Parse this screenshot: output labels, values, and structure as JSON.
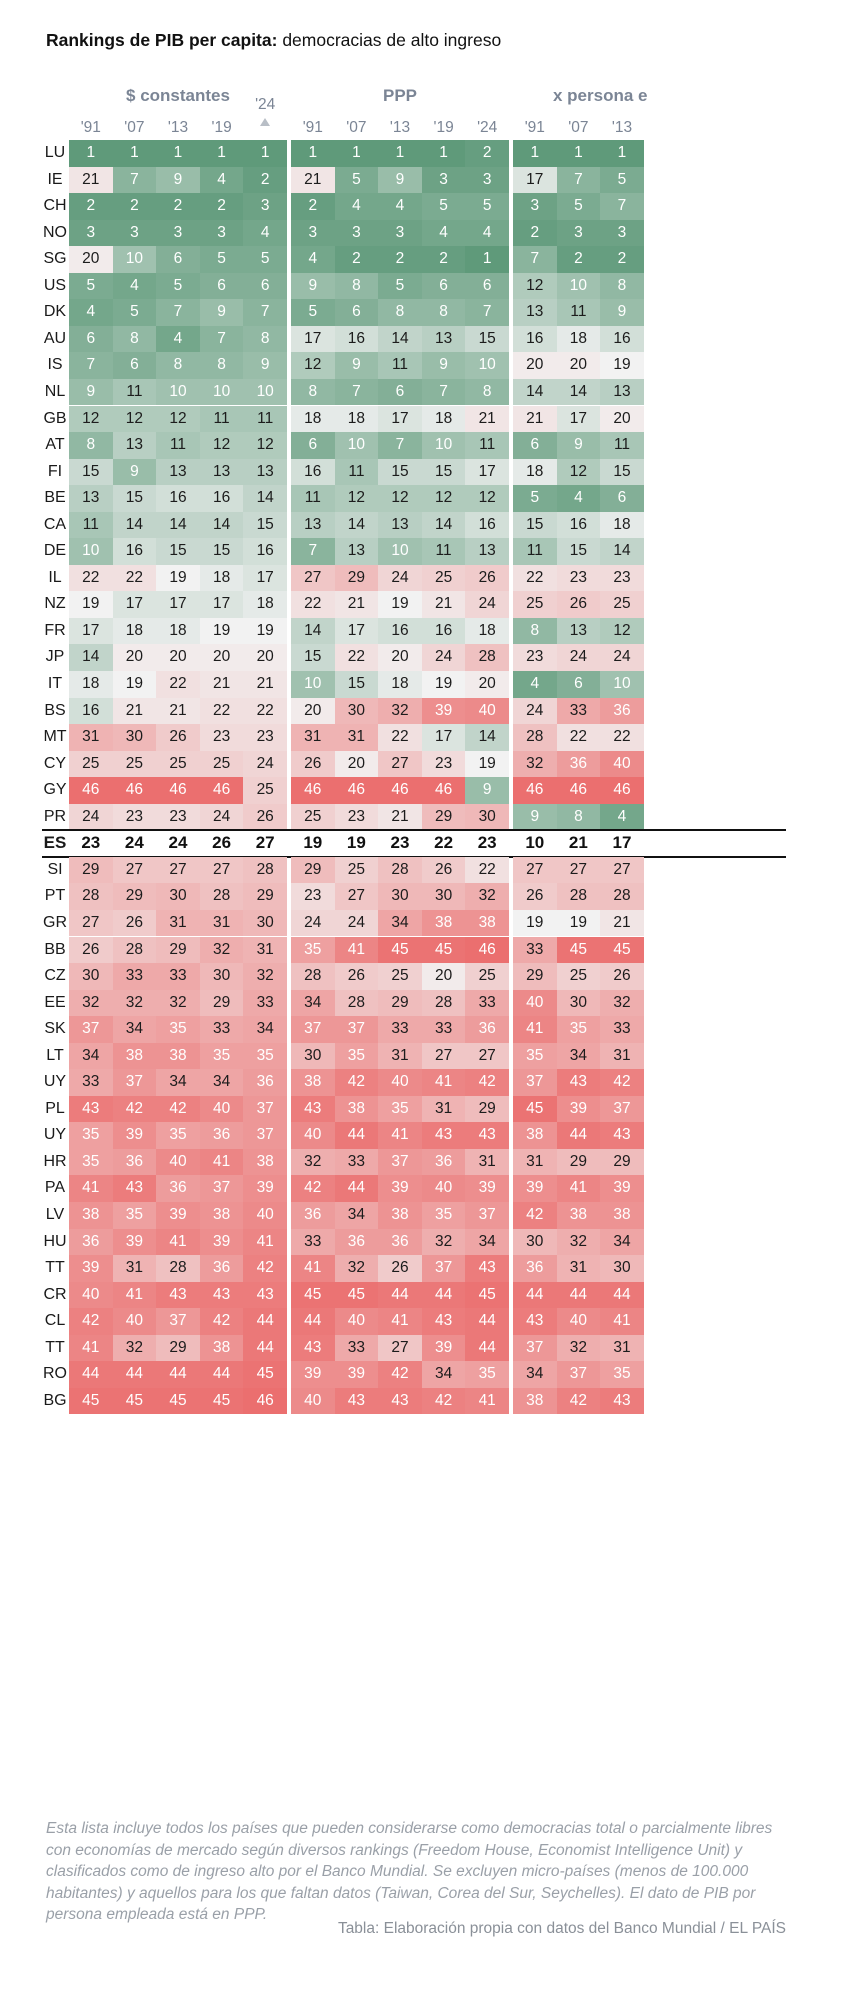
{
  "title": {
    "bold": "Rankings de PIB per capita:",
    "rest": " democracias de alto ingreso"
  },
  "groups": [
    "$ constantes",
    "PPP",
    "x persona e"
  ],
  "years": [
    "'91",
    "'07",
    "'13",
    "'19",
    "'24"
  ],
  "sorted_year_label": "'24",
  "note": "Esta lista incluye todos los países que pueden considerarse como democracias total o parcialmente libres con economías de mercado según diversos rankings (Freedom House, Economist Intelligence Unit) y clasificados como de ingreso alto por el Banco Mundial. Se excluyen micro-países (menos de 100.000 habitantes) y aquellos para los que faltan datos (Taiwan, Corea del Sur, Seychelles). El dato de PIB por persona empleada está en PPP.",
  "source": "Tabla: Elaboración propia con datos del Banco Mundial / EL PAÍS",
  "colors": {
    "good": "#5f9a7a",
    "bad": "#eb6f6f",
    "neutral": "#f2f2f2",
    "group_header": "#7b8595"
  },
  "chart_data": {
    "type": "table",
    "highlight_row": "ES",
    "columns": [
      "$ constantes '91",
      "$ constantes '07",
      "$ constantes '13",
      "$ constantes '19",
      "$ constantes '24",
      "PPP '91",
      "PPP '07",
      "PPP '13",
      "PPP '19",
      "PPP '24",
      "x persona e '91",
      "x persona e '07",
      "x persona e '13"
    ],
    "rows": [
      {
        "country": "LU",
        "values": [
          1,
          1,
          1,
          1,
          1,
          1,
          1,
          1,
          1,
          2,
          1,
          1,
          1
        ]
      },
      {
        "country": "IE",
        "values": [
          21,
          7,
          9,
          4,
          2,
          21,
          5,
          9,
          3,
          3,
          17,
          7,
          5
        ]
      },
      {
        "country": "CH",
        "values": [
          2,
          2,
          2,
          2,
          3,
          2,
          4,
          4,
          5,
          5,
          3,
          5,
          7
        ]
      },
      {
        "country": "NO",
        "values": [
          3,
          3,
          3,
          3,
          4,
          3,
          3,
          3,
          4,
          4,
          2,
          3,
          3
        ]
      },
      {
        "country": "SG",
        "values": [
          20,
          10,
          6,
          5,
          5,
          4,
          2,
          2,
          2,
          1,
          7,
          2,
          2
        ]
      },
      {
        "country": "US",
        "values": [
          5,
          4,
          5,
          6,
          6,
          9,
          8,
          5,
          6,
          6,
          12,
          10,
          8
        ]
      },
      {
        "country": "DK",
        "values": [
          4,
          5,
          7,
          9,
          7,
          5,
          6,
          8,
          8,
          7,
          13,
          11,
          9
        ]
      },
      {
        "country": "AU",
        "values": [
          6,
          8,
          4,
          7,
          8,
          17,
          16,
          14,
          13,
          15,
          16,
          18,
          16
        ]
      },
      {
        "country": "IS",
        "values": [
          7,
          6,
          8,
          8,
          9,
          12,
          9,
          11,
          9,
          10,
          20,
          20,
          19
        ]
      },
      {
        "country": "NL",
        "values": [
          9,
          11,
          10,
          10,
          10,
          8,
          7,
          6,
          7,
          8,
          14,
          14,
          13
        ]
      },
      {
        "country": "GB",
        "values": [
          12,
          12,
          12,
          11,
          11,
          18,
          18,
          17,
          18,
          21,
          21,
          17,
          20
        ]
      },
      {
        "country": "AT",
        "values": [
          8,
          13,
          11,
          12,
          12,
          6,
          10,
          7,
          10,
          11,
          6,
          9,
          11
        ]
      },
      {
        "country": "FI",
        "values": [
          15,
          9,
          13,
          13,
          13,
          16,
          11,
          15,
          15,
          17,
          18,
          12,
          15
        ]
      },
      {
        "country": "BE",
        "values": [
          13,
          15,
          16,
          16,
          14,
          11,
          12,
          12,
          12,
          12,
          5,
          4,
          6
        ]
      },
      {
        "country": "CA",
        "values": [
          11,
          14,
          14,
          14,
          15,
          13,
          14,
          13,
          14,
          16,
          15,
          16,
          18
        ]
      },
      {
        "country": "DE",
        "values": [
          10,
          16,
          15,
          15,
          16,
          7,
          13,
          10,
          11,
          13,
          11,
          15,
          14
        ]
      },
      {
        "country": "IL",
        "values": [
          22,
          22,
          19,
          18,
          17,
          27,
          29,
          24,
          25,
          26,
          22,
          23,
          23
        ]
      },
      {
        "country": "NZ",
        "values": [
          19,
          17,
          17,
          17,
          18,
          22,
          21,
          19,
          21,
          24,
          25,
          26,
          25
        ]
      },
      {
        "country": "FR",
        "values": [
          17,
          18,
          18,
          19,
          19,
          14,
          17,
          16,
          16,
          18,
          8,
          13,
          12
        ]
      },
      {
        "country": "JP",
        "values": [
          14,
          20,
          20,
          20,
          20,
          15,
          22,
          20,
          24,
          28,
          23,
          24,
          24
        ]
      },
      {
        "country": "IT",
        "values": [
          18,
          19,
          22,
          21,
          21,
          10,
          15,
          18,
          19,
          20,
          4,
          6,
          10
        ]
      },
      {
        "country": "BS",
        "values": [
          16,
          21,
          21,
          22,
          22,
          20,
          30,
          32,
          39,
          40,
          24,
          33,
          36
        ]
      },
      {
        "country": "MT",
        "values": [
          31,
          30,
          26,
          23,
          23,
          31,
          31,
          22,
          17,
          14,
          28,
          22,
          22
        ]
      },
      {
        "country": "CY",
        "values": [
          25,
          25,
          25,
          25,
          24,
          26,
          20,
          27,
          23,
          19,
          32,
          36,
          40
        ]
      },
      {
        "country": "GY",
        "values": [
          46,
          46,
          46,
          46,
          25,
          46,
          46,
          46,
          46,
          9,
          46,
          46,
          46
        ]
      },
      {
        "country": "PR",
        "values": [
          24,
          23,
          23,
          24,
          26,
          25,
          23,
          21,
          29,
          30,
          9,
          8,
          4
        ]
      },
      {
        "country": "ES",
        "values": [
          23,
          24,
          24,
          26,
          27,
          19,
          19,
          23,
          22,
          23,
          10,
          21,
          17
        ]
      },
      {
        "country": "SI",
        "values": [
          29,
          27,
          27,
          27,
          28,
          29,
          25,
          28,
          26,
          22,
          27,
          27,
          27
        ]
      },
      {
        "country": "PT",
        "values": [
          28,
          29,
          30,
          28,
          29,
          23,
          27,
          30,
          30,
          32,
          26,
          28,
          28
        ]
      },
      {
        "country": "GR",
        "values": [
          27,
          26,
          31,
          31,
          30,
          24,
          24,
          34,
          38,
          38,
          19,
          19,
          21
        ]
      },
      {
        "country": "BB",
        "values": [
          26,
          28,
          29,
          32,
          31,
          35,
          41,
          45,
          45,
          46,
          33,
          45,
          45
        ]
      },
      {
        "country": "CZ",
        "values": [
          30,
          33,
          33,
          30,
          32,
          28,
          26,
          25,
          20,
          25,
          29,
          25,
          26
        ]
      },
      {
        "country": "EE",
        "values": [
          32,
          32,
          32,
          29,
          33,
          34,
          28,
          29,
          28,
          33,
          40,
          30,
          32
        ]
      },
      {
        "country": "SK",
        "values": [
          37,
          34,
          35,
          33,
          34,
          37,
          37,
          33,
          33,
          36,
          41,
          35,
          33
        ]
      },
      {
        "country": "LT",
        "values": [
          34,
          38,
          38,
          35,
          35,
          30,
          35,
          31,
          27,
          27,
          35,
          34,
          31
        ]
      },
      {
        "country": "UY",
        "values": [
          33,
          37,
          34,
          34,
          36,
          38,
          42,
          40,
          41,
          42,
          37,
          43,
          42
        ]
      },
      {
        "country": "PL",
        "values": [
          43,
          42,
          42,
          40,
          37,
          43,
          38,
          35,
          31,
          29,
          45,
          39,
          37
        ]
      },
      {
        "country": "UY",
        "values": [
          35,
          39,
          35,
          36,
          37,
          40,
          44,
          41,
          43,
          43,
          38,
          44,
          43
        ]
      },
      {
        "country": "HR",
        "values": [
          35,
          36,
          40,
          41,
          38,
          32,
          33,
          37,
          36,
          31,
          31,
          29,
          29
        ]
      },
      {
        "country": "PA",
        "values": [
          41,
          43,
          36,
          37,
          39,
          42,
          44,
          39,
          40,
          39,
          39,
          41,
          39
        ]
      },
      {
        "country": "LV",
        "values": [
          38,
          35,
          39,
          38,
          40,
          36,
          34,
          38,
          35,
          37,
          42,
          38,
          38
        ]
      },
      {
        "country": "HU",
        "values": [
          36,
          39,
          41,
          39,
          41,
          33,
          36,
          36,
          32,
          34,
          30,
          32,
          34
        ]
      },
      {
        "country": "TT",
        "values": [
          39,
          31,
          28,
          36,
          42,
          41,
          32,
          26,
          37,
          43,
          36,
          31,
          30
        ]
      },
      {
        "country": "CR",
        "values": [
          40,
          41,
          43,
          43,
          43,
          45,
          45,
          44,
          44,
          45,
          44,
          44,
          44
        ]
      },
      {
        "country": "CL",
        "values": [
          42,
          40,
          37,
          42,
          44,
          44,
          40,
          41,
          43,
          44,
          43,
          40,
          41
        ]
      },
      {
        "country": "TT",
        "values": [
          41,
          32,
          29,
          38,
          44,
          43,
          33,
          27,
          39,
          44,
          37,
          32,
          31
        ]
      },
      {
        "country": "RO",
        "values": [
          44,
          44,
          44,
          44,
          45,
          39,
          39,
          42,
          34,
          35,
          34,
          37,
          35
        ]
      },
      {
        "country": "BG",
        "values": [
          45,
          45,
          45,
          45,
          46,
          40,
          43,
          43,
          42,
          41,
          38,
          42,
          43
        ]
      }
    ]
  }
}
